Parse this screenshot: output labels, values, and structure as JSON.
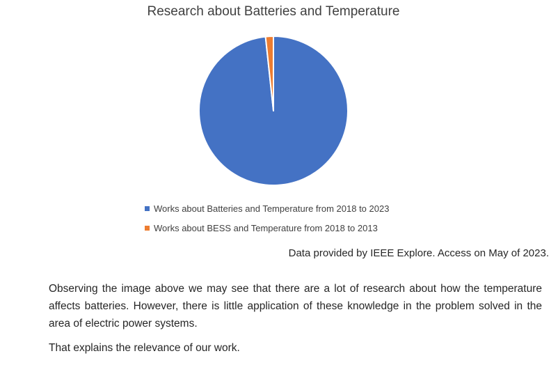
{
  "chart_data": {
    "type": "pie",
    "title": "Research about Batteries and Temperature",
    "series": [
      {
        "name": "Works about Batteries and Temperature from 2018 to 2023",
        "value": 98.3,
        "color": "#4472C4"
      },
      {
        "name": "Works about BESS and Temperature from 2018 to 2013",
        "value": 1.7,
        "color": "#ED7D31"
      }
    ],
    "legend_position": "bottom"
  },
  "source_note": "Data provided by IEEE Explore. Access on May of 2023.",
  "paragraphs": [
    "Observing the image above we may see that there are a lot of research about how the temperature affects batteries. However, there is little application of these knowledge in the problem solved in the area of electric power systems.",
    "That explains the relevance of our work."
  ]
}
